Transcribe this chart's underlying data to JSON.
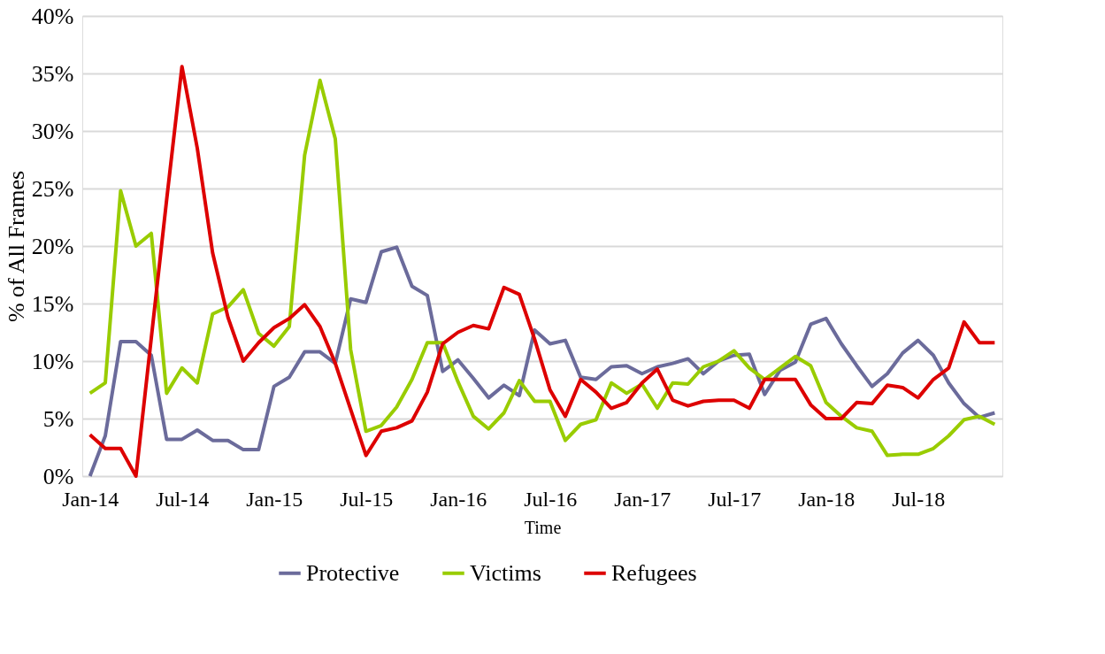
{
  "chart_data": {
    "type": "line",
    "xlabel": "Time",
    "ylabel": "% of All Frames",
    "categories": [
      "Jan-14",
      null,
      null,
      null,
      null,
      null,
      "Jul-14",
      null,
      null,
      null,
      null,
      null,
      "Jan-15",
      null,
      null,
      null,
      null,
      null,
      "Jul-15",
      null,
      null,
      null,
      null,
      null,
      "Jan-16",
      null,
      null,
      null,
      null,
      null,
      "Jul-16",
      null,
      null,
      null,
      null,
      null,
      "Jan-17",
      null,
      null,
      null,
      null,
      null,
      "Jul-17",
      null,
      null,
      null,
      null,
      null,
      "Jan-18",
      null,
      null,
      null,
      null,
      null,
      "Jul-18",
      null,
      null,
      null,
      null,
      null
    ],
    "series": [
      {
        "name": "Protective",
        "color": "#6b6b9b",
        "values": [
          0,
          3.5,
          11.7,
          11.7,
          10.5,
          3.2,
          3.2,
          4.0,
          3.1,
          3.1,
          2.3,
          2.3,
          7.8,
          8.6,
          10.8,
          10.8,
          9.8,
          15.4,
          15.1,
          19.5,
          19.9,
          16.5,
          15.7,
          9.1,
          10.1,
          8.5,
          6.8,
          7.9,
          7.0,
          12.7,
          11.5,
          11.8,
          8.6,
          8.4,
          9.5,
          9.6,
          8.9,
          9.5,
          9.8,
          10.2,
          8.9,
          10.0,
          10.5,
          10.6,
          7.1,
          9.2,
          9.9,
          13.2,
          13.7,
          11.5,
          9.6,
          7.8,
          8.9,
          10.7,
          11.8,
          10.5,
          8.1,
          6.3,
          5.1,
          5.5
        ]
      },
      {
        "name": "Victims",
        "color": "#99cc00",
        "values": [
          7.2,
          8.1,
          24.8,
          20.0,
          21.1,
          7.2,
          9.4,
          8.1,
          14.1,
          14.7,
          16.2,
          12.4,
          11.3,
          13.0,
          27.9,
          34.4,
          29.3,
          11.0,
          3.9,
          4.4,
          6.0,
          8.4,
          11.6,
          11.6,
          8.2,
          5.2,
          4.1,
          5.5,
          8.3,
          6.5,
          6.5,
          3.1,
          4.5,
          4.9,
          8.1,
          7.2,
          8.0,
          5.9,
          8.1,
          8.0,
          9.5,
          10.0,
          10.9,
          9.4,
          8.4,
          9.4,
          10.4,
          9.6,
          6.4,
          5.2,
          4.2,
          3.9,
          1.8,
          1.9,
          1.9,
          2.4,
          3.5,
          4.9,
          5.2,
          4.5
        ]
      },
      {
        "name": "Refugees",
        "color": "#dd0000",
        "values": [
          3.6,
          2.4,
          2.4,
          0,
          12.0,
          24.0,
          35.6,
          28.5,
          19.4,
          13.8,
          10.0,
          11.6,
          12.9,
          13.7,
          14.9,
          13.0,
          9.8,
          5.8,
          1.8,
          3.9,
          4.2,
          4.8,
          7.3,
          11.5,
          12.5,
          13.1,
          12.8,
          16.4,
          15.8,
          11.9,
          7.5,
          5.2,
          8.4,
          7.3,
          5.9,
          6.4,
          8.1,
          9.3,
          6.6,
          6.1,
          6.5,
          6.6,
          6.6,
          5.9,
          8.4,
          8.4,
          8.4,
          6.2,
          5.0,
          5.0,
          6.4,
          6.3,
          7.9,
          7.7,
          6.8,
          8.4,
          9.4,
          13.4,
          11.6,
          11.6
        ]
      }
    ],
    "ylim": [
      0,
      40
    ],
    "yticks": [
      {
        "value": 0,
        "label": "0%"
      },
      {
        "value": 5,
        "label": "5%"
      },
      {
        "value": 10,
        "label": "10%"
      },
      {
        "value": 15,
        "label": "15%"
      },
      {
        "value": 20,
        "label": "20%"
      },
      {
        "value": 25,
        "label": "25%"
      },
      {
        "value": 30,
        "label": "30%"
      },
      {
        "value": 35,
        "label": "35%"
      },
      {
        "value": 40,
        "label": "40%"
      }
    ],
    "grid": "y",
    "legend": "bottom",
    "marker": "none",
    "line_style": "solid"
  }
}
